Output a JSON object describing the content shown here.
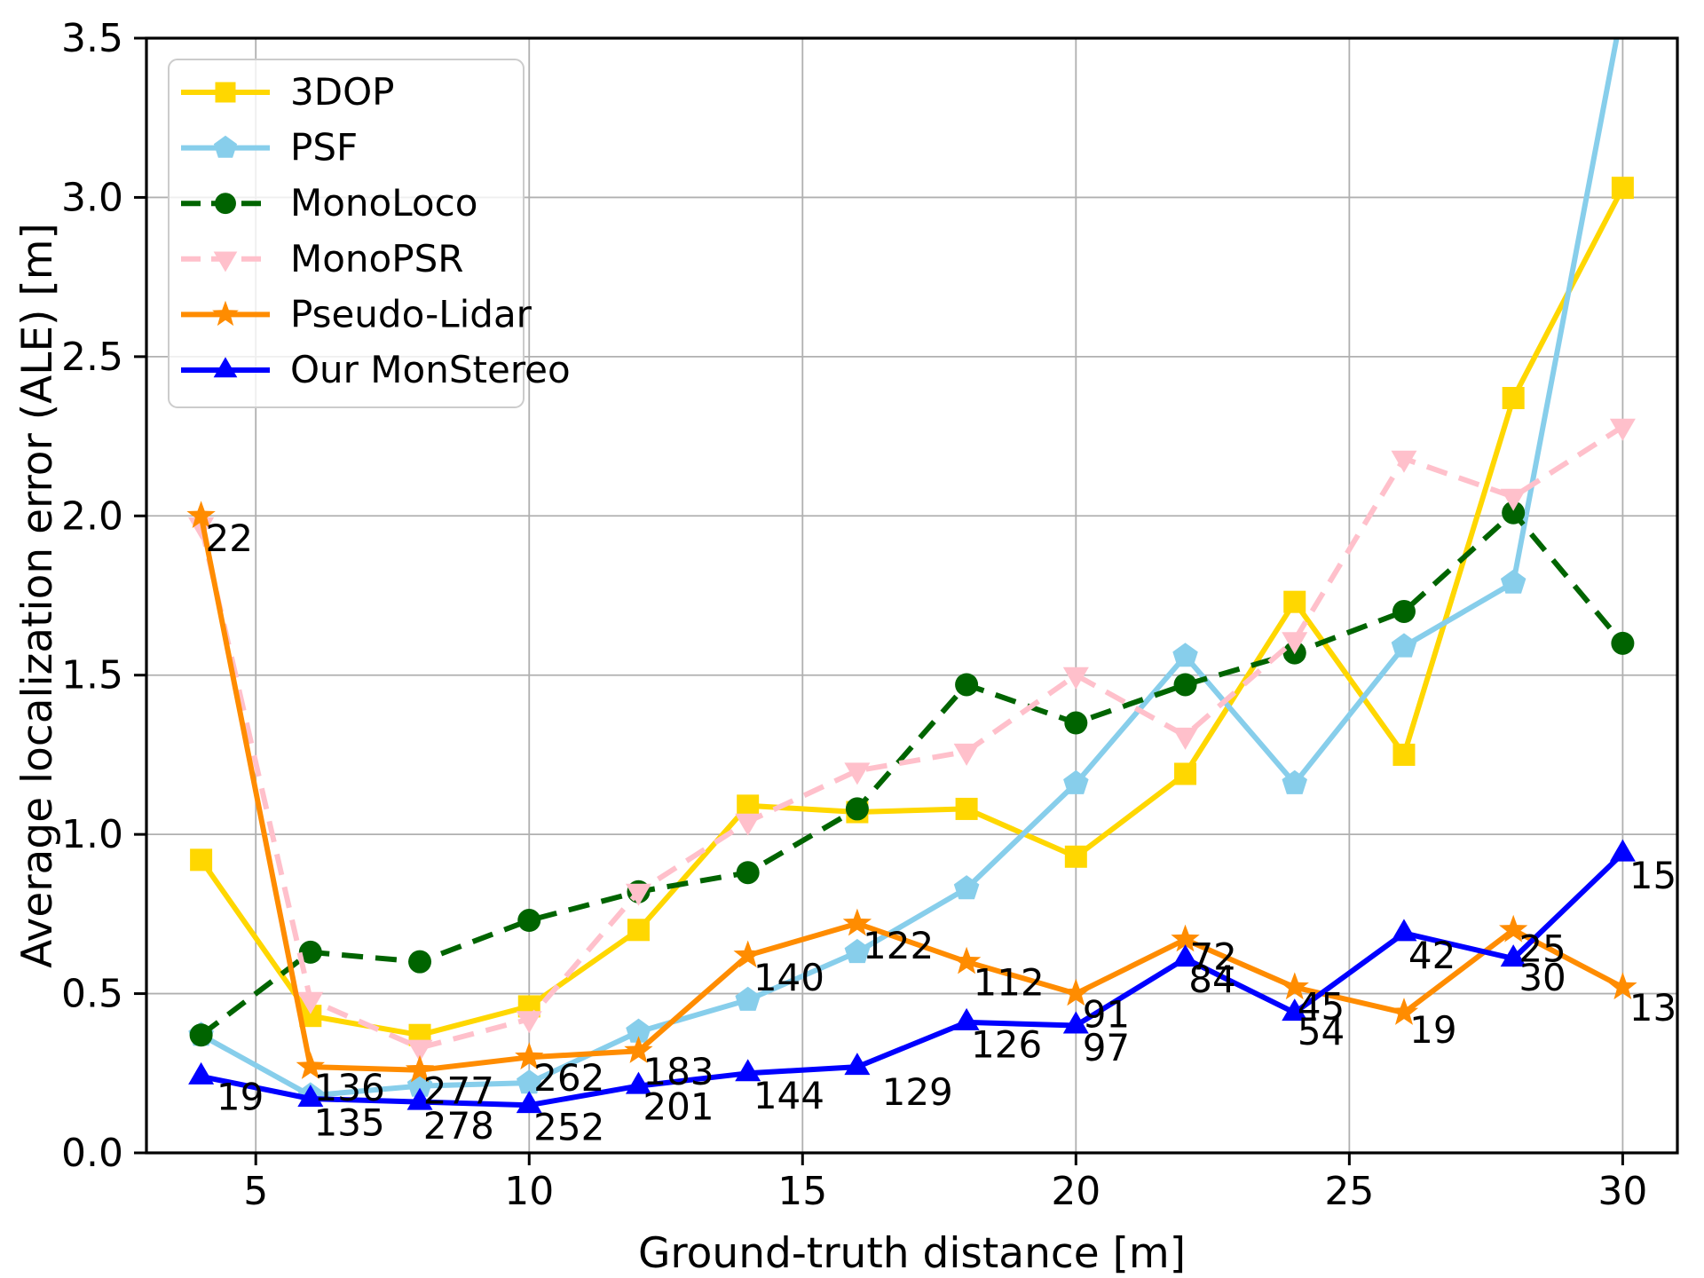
{
  "chart_data": {
    "type": "line",
    "title": "",
    "xlabel": "Ground-truth distance [m]",
    "ylabel": "Average localization error (ALE) [m]",
    "x": [
      4,
      6,
      8,
      10,
      12,
      14,
      16,
      18,
      20,
      22,
      24,
      26,
      28,
      30
    ],
    "xlim": [
      3,
      31
    ],
    "ylim": [
      0,
      3.5
    ],
    "xticks": [
      5,
      10,
      15,
      20,
      25,
      30
    ],
    "yticks": [
      0,
      0.5,
      1,
      1.5,
      2,
      2.5,
      3,
      3.5
    ],
    "ytick_labels": [
      "0.0",
      "0.5",
      "1.0",
      "1.5",
      "2.0",
      "2.5",
      "3.0",
      "3.5"
    ],
    "grid": true,
    "grid_color": "#b0b0b0",
    "spine_color": "#000000",
    "legend_position": "upper-left",
    "series": [
      {
        "name": "3DOP",
        "color": "#FFD700",
        "marker": "square",
        "line_style": "solid",
        "values": [
          0.92,
          0.43,
          0.37,
          0.46,
          0.7,
          1.09,
          1.07,
          1.08,
          0.93,
          1.19,
          1.73,
          1.25,
          2.37,
          3.03
        ]
      },
      {
        "name": "PSF",
        "color": "#87CEEB",
        "marker": "pentagon",
        "line_style": "solid",
        "values": [
          0.37,
          0.18,
          0.21,
          0.22,
          0.38,
          0.48,
          0.63,
          0.83,
          1.16,
          1.56,
          1.16,
          1.59,
          1.79,
          3.6
        ]
      },
      {
        "name": "MonoLoco",
        "color": "#006400",
        "marker": "circle",
        "line_style": "dashed",
        "values": [
          0.37,
          0.63,
          0.6,
          0.73,
          0.82,
          0.88,
          1.08,
          1.47,
          1.35,
          1.47,
          1.57,
          1.7,
          2.01,
          1.6
        ]
      },
      {
        "name": "MonoPSR",
        "color": "#FFC0CB",
        "marker": "triangle-down",
        "line_style": "dashed",
        "values": [
          1.97,
          0.48,
          0.33,
          0.42,
          0.82,
          1.04,
          1.2,
          1.26,
          1.5,
          1.31,
          1.61,
          2.18,
          2.06,
          2.28
        ]
      },
      {
        "name": "Pseudo-Lidar",
        "color": "#FF8C00",
        "marker": "star",
        "line_style": "solid",
        "values": [
          2.0,
          0.27,
          0.26,
          0.3,
          0.32,
          0.62,
          0.72,
          0.6,
          0.5,
          0.67,
          0.52,
          0.44,
          0.7,
          0.52
        ]
      },
      {
        "name": "Our MonStereo",
        "color": "#0000FF",
        "marker": "triangle-up",
        "line_style": "solid",
        "values": [
          0.24,
          0.17,
          0.16,
          0.15,
          0.21,
          0.25,
          0.27,
          0.41,
          0.4,
          0.61,
          0.44,
          0.69,
          0.61,
          0.94
        ]
      }
    ],
    "annotations": [
      {
        "text": "22",
        "x": 4.08,
        "y": 1.89
      },
      {
        "text": "19",
        "x": 4.28,
        "y": 0.135
      },
      {
        "text": "136",
        "x": 6.06,
        "y": 0.165
      },
      {
        "text": "135",
        "x": 6.06,
        "y": 0.055
      },
      {
        "text": "277",
        "x": 8.06,
        "y": 0.155
      },
      {
        "text": "278",
        "x": 8.06,
        "y": 0.045
      },
      {
        "text": "262",
        "x": 10.08,
        "y": 0.195
      },
      {
        "text": "252",
        "x": 10.08,
        "y": 0.04
      },
      {
        "text": "183",
        "x": 12.08,
        "y": 0.215
      },
      {
        "text": "201",
        "x": 12.08,
        "y": 0.105
      },
      {
        "text": "140",
        "x": 14.1,
        "y": 0.51
      },
      {
        "text": "144",
        "x": 14.1,
        "y": 0.14
      },
      {
        "text": "122",
        "x": 16.1,
        "y": 0.61
      },
      {
        "text": "129",
        "x": 16.45,
        "y": 0.15
      },
      {
        "text": "112",
        "x": 18.12,
        "y": 0.495
      },
      {
        "text": "126",
        "x": 18.08,
        "y": 0.3
      },
      {
        "text": "91",
        "x": 20.12,
        "y": 0.395
      },
      {
        "text": "97",
        "x": 20.12,
        "y": 0.29
      },
      {
        "text": "72",
        "x": 22.08,
        "y": 0.575
      },
      {
        "text": "84",
        "x": 22.06,
        "y": 0.505
      },
      {
        "text": "45",
        "x": 24.05,
        "y": 0.42
      },
      {
        "text": "54",
        "x": 24.05,
        "y": 0.34
      },
      {
        "text": "42",
        "x": 26.08,
        "y": 0.58
      },
      {
        "text": "19",
        "x": 26.1,
        "y": 0.345
      },
      {
        "text": "25",
        "x": 28.1,
        "y": 0.6
      },
      {
        "text": "30",
        "x": 28.1,
        "y": 0.51
      },
      {
        "text": "15",
        "x": 30.12,
        "y": 0.83
      },
      {
        "text": "13",
        "x": 30.12,
        "y": 0.415
      }
    ],
    "annotation_color": "#000000",
    "legend_labels": [
      "3DOP",
      "PSF",
      "MonoLoco",
      "MonoPSR",
      "Pseudo-Lidar",
      "Our MonStereo"
    ]
  }
}
